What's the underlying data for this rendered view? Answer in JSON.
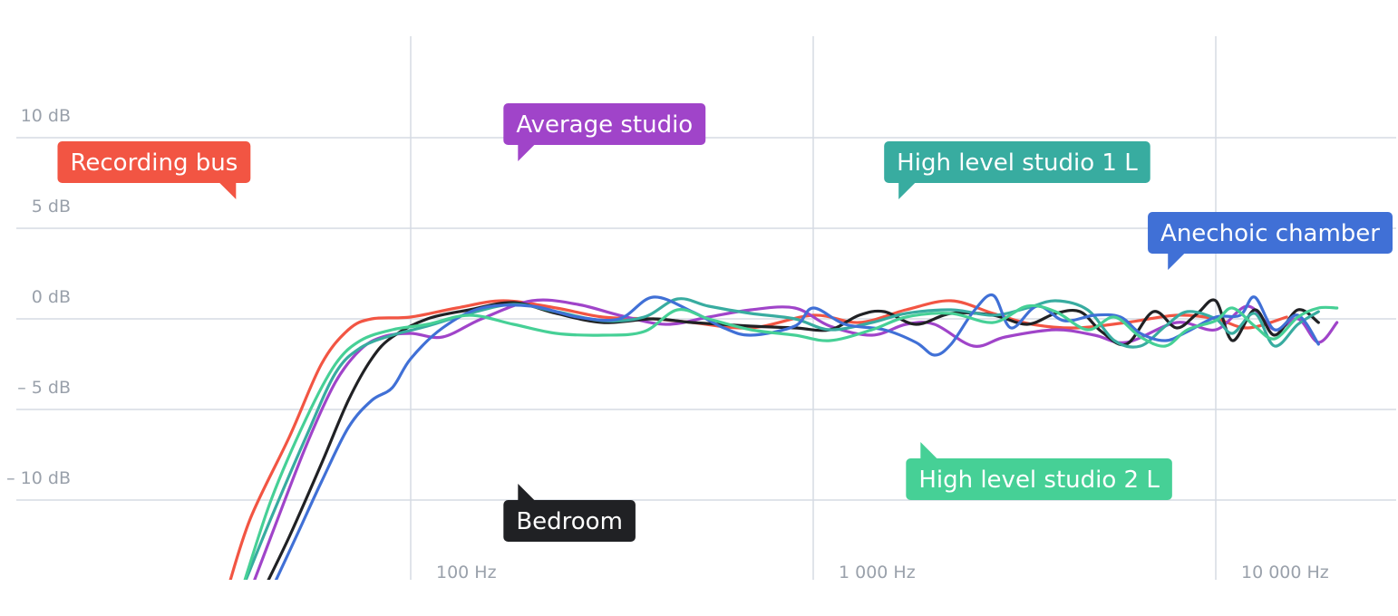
{
  "chart_data": {
    "type": "line",
    "title": "",
    "xlabel": "",
    "ylabel": "",
    "x_scale": "log",
    "xlim": [
      20,
      20000
    ],
    "ylim": [
      -15,
      15
    ],
    "grid": true,
    "y_ticks": [
      {
        "value": 10,
        "label": "10 dB"
      },
      {
        "value": 5,
        "label": "5 dB"
      },
      {
        "value": 0,
        "label": "0 dB"
      },
      {
        "value": -5,
        "label": "– 5 dB"
      },
      {
        "value": -10,
        "label": "– 10 dB"
      }
    ],
    "x_ticks": [
      {
        "value": 100,
        "label": "100 Hz"
      },
      {
        "value": 1000,
        "label": "1 000 Hz"
      },
      {
        "value": 10000,
        "label": "10 000 Hz"
      }
    ],
    "series": [
      {
        "name": "Recording bus",
        "color": "#f25543",
        "label_at": {
          "x": 40,
          "y": 7.5,
          "pointer": "bottom-right"
        },
        "points": [
          [
            35,
            -15
          ],
          [
            40,
            -11
          ],
          [
            50,
            -6.5
          ],
          [
            60,
            -2.5
          ],
          [
            70,
            -0.6
          ],
          [
            80,
            0
          ],
          [
            100,
            0.1
          ],
          [
            130,
            0.6
          ],
          [
            170,
            1.0
          ],
          [
            230,
            0.6
          ],
          [
            300,
            0.1
          ],
          [
            400,
            0
          ],
          [
            500,
            -0.2
          ],
          [
            700,
            -0.5
          ],
          [
            1000,
            0.2
          ],
          [
            1300,
            -0.2
          ],
          [
            1700,
            0.5
          ],
          [
            2200,
            1.0
          ],
          [
            2800,
            0.3
          ],
          [
            3500,
            -0.3
          ],
          [
            4500,
            -0.5
          ],
          [
            6000,
            -0.2
          ],
          [
            8000,
            0.2
          ],
          [
            10000,
            0
          ],
          [
            12000,
            -0.5
          ],
          [
            15000,
            0.1
          ]
        ]
      },
      {
        "name": "Average studio",
        "color": "#a044c9",
        "label_at": {
          "x": 170,
          "y": 9.6,
          "pointer": "bottom-left"
        },
        "points": [
          [
            40,
            -15
          ],
          [
            45,
            -12
          ],
          [
            55,
            -7
          ],
          [
            65,
            -3.5
          ],
          [
            75,
            -1.7
          ],
          [
            85,
            -1.0
          ],
          [
            100,
            -0.8
          ],
          [
            120,
            -1.0
          ],
          [
            150,
            0
          ],
          [
            200,
            1.0
          ],
          [
            260,
            0.8
          ],
          [
            330,
            0.2
          ],
          [
            430,
            -0.3
          ],
          [
            550,
            0.1
          ],
          [
            700,
            0.5
          ],
          [
            900,
            0.6
          ],
          [
            1100,
            -0.4
          ],
          [
            1400,
            -0.9
          ],
          [
            1700,
            -0.3
          ],
          [
            2000,
            -0.3
          ],
          [
            2500,
            -1.5
          ],
          [
            3000,
            -1.0
          ],
          [
            4000,
            -0.6
          ],
          [
            5000,
            -0.9
          ],
          [
            6000,
            -1.3
          ],
          [
            8000,
            -0.2
          ],
          [
            10000,
            -0.6
          ],
          [
            12000,
            0.7
          ],
          [
            14000,
            -0.6
          ],
          [
            16000,
            0
          ],
          [
            18000,
            -1.3
          ],
          [
            20000,
            -0.2
          ]
        ]
      },
      {
        "name": "Bedroom",
        "color": "#202124",
        "label_at": {
          "x": 170,
          "y": -10.0,
          "pointer": "top-left"
        },
        "points": [
          [
            43,
            -15
          ],
          [
            50,
            -12
          ],
          [
            60,
            -8
          ],
          [
            70,
            -4.5
          ],
          [
            80,
            -2.2
          ],
          [
            90,
            -1.0
          ],
          [
            110,
            0
          ],
          [
            140,
            0.5
          ],
          [
            180,
            0.9
          ],
          [
            230,
            0.3
          ],
          [
            300,
            -0.2
          ],
          [
            400,
            0
          ],
          [
            500,
            -0.2
          ],
          [
            700,
            -0.4
          ],
          [
            900,
            -0.5
          ],
          [
            1100,
            -0.6
          ],
          [
            1300,
            0.2
          ],
          [
            1500,
            0.4
          ],
          [
            1800,
            -0.3
          ],
          [
            2200,
            0.3
          ],
          [
            2800,
            0.2
          ],
          [
            3400,
            -0.3
          ],
          [
            4000,
            0.3
          ],
          [
            4600,
            0.4
          ],
          [
            5200,
            -0.7
          ],
          [
            6000,
            -1.4
          ],
          [
            7000,
            0.4
          ],
          [
            8000,
            -0.5
          ],
          [
            9000,
            0.3
          ],
          [
            10000,
            1.0
          ],
          [
            11000,
            -1.2
          ],
          [
            12500,
            0.5
          ],
          [
            14000,
            -0.9
          ],
          [
            16000,
            0.5
          ],
          [
            18000,
            -0.2
          ]
        ]
      },
      {
        "name": "High level studio 1 L",
        "color": "#38aca0",
        "label_at": {
          "x": 1500,
          "y": 7.5,
          "pointer": "bottom-left"
        },
        "points": [
          [
            38,
            -15
          ],
          [
            45,
            -11
          ],
          [
            55,
            -6.5
          ],
          [
            65,
            -3.0
          ],
          [
            75,
            -1.6
          ],
          [
            90,
            -0.9
          ],
          [
            110,
            -0.4
          ],
          [
            140,
            0.3
          ],
          [
            180,
            0.8
          ],
          [
            230,
            0.4
          ],
          [
            300,
            -0.1
          ],
          [
            380,
            0.1
          ],
          [
            460,
            1.1
          ],
          [
            550,
            0.7
          ],
          [
            700,
            0.3
          ],
          [
            900,
            0
          ],
          [
            1100,
            -0.6
          ],
          [
            1400,
            -0.2
          ],
          [
            1700,
            0.3
          ],
          [
            2200,
            0.5
          ],
          [
            2800,
            0.2
          ],
          [
            3400,
            0.6
          ],
          [
            4000,
            1.0
          ],
          [
            4800,
            0.5
          ],
          [
            5600,
            -1.2
          ],
          [
            6500,
            -1.5
          ],
          [
            7500,
            -0.4
          ],
          [
            8500,
            0.4
          ],
          [
            10000,
            0
          ],
          [
            11000,
            -0.8
          ],
          [
            12500,
            0.3
          ],
          [
            14000,
            -1.5
          ],
          [
            16000,
            -0.3
          ],
          [
            18000,
            0.4
          ]
        ]
      },
      {
        "name": "Anechoic chamber",
        "color": "#4070d6",
        "label_at": {
          "x": 7000,
          "y": 3.6,
          "pointer": "bottom-left"
        },
        "points": [
          [
            45,
            -15
          ],
          [
            52,
            -12
          ],
          [
            60,
            -9
          ],
          [
            70,
            -6
          ],
          [
            80,
            -4.5
          ],
          [
            90,
            -3.8
          ],
          [
            100,
            -2.2
          ],
          [
            120,
            -0.5
          ],
          [
            150,
            0.6
          ],
          [
            200,
            0.7
          ],
          [
            260,
            0.1
          ],
          [
            330,
            0
          ],
          [
            400,
            1.2
          ],
          [
            500,
            0.4
          ],
          [
            600,
            -0.5
          ],
          [
            700,
            -0.9
          ],
          [
            900,
            -0.4
          ],
          [
            1000,
            0.6
          ],
          [
            1200,
            -0.3
          ],
          [
            1500,
            -0.6
          ],
          [
            1800,
            -1.3
          ],
          [
            2000,
            -2.0
          ],
          [
            2200,
            -1.4
          ],
          [
            2500,
            0.4
          ],
          [
            2800,
            1.3
          ],
          [
            3100,
            -0.5
          ],
          [
            3600,
            0.7
          ],
          [
            4200,
            -0.1
          ],
          [
            5000,
            0.2
          ],
          [
            5800,
            0.1
          ],
          [
            6500,
            -0.8
          ],
          [
            7500,
            -1.2
          ],
          [
            8500,
            -0.7
          ],
          [
            10000,
            0.1
          ],
          [
            11500,
            0.2
          ],
          [
            12500,
            1.2
          ],
          [
            14000,
            -0.6
          ],
          [
            16000,
            0.2
          ],
          [
            18000,
            -1.4
          ]
        ]
      },
      {
        "name": "High level studio 2 L",
        "color": "#46d096",
        "label_at": {
          "x": 1700,
          "y": -7.7,
          "pointer": "top-left"
        },
        "points": [
          [
            38,
            -15
          ],
          [
            45,
            -10
          ],
          [
            55,
            -5.5
          ],
          [
            65,
            -2.5
          ],
          [
            75,
            -1.2
          ],
          [
            90,
            -0.6
          ],
          [
            110,
            -0.3
          ],
          [
            140,
            0.2
          ],
          [
            180,
            -0.3
          ],
          [
            230,
            -0.8
          ],
          [
            300,
            -0.9
          ],
          [
            380,
            -0.7
          ],
          [
            460,
            0.5
          ],
          [
            550,
            0
          ],
          [
            700,
            -0.6
          ],
          [
            900,
            -0.9
          ],
          [
            1100,
            -1.2
          ],
          [
            1400,
            -0.6
          ],
          [
            1700,
            0.1
          ],
          [
            2200,
            0.3
          ],
          [
            2800,
            -0.2
          ],
          [
            3400,
            0.7
          ],
          [
            4000,
            0.4
          ],
          [
            4800,
            -0.6
          ],
          [
            5600,
            0.1
          ],
          [
            6500,
            -1.0
          ],
          [
            7500,
            -1.5
          ],
          [
            8500,
            -0.6
          ],
          [
            10000,
            -0.1
          ],
          [
            11000,
            0.6
          ],
          [
            12500,
            -0.4
          ],
          [
            14000,
            -1.1
          ],
          [
            16000,
            0.1
          ],
          [
            18000,
            0.6
          ],
          [
            20000,
            0.6
          ]
        ]
      }
    ]
  }
}
